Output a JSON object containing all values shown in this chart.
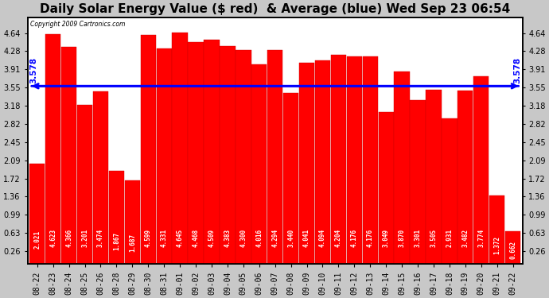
{
  "title": "Daily Solar Energy Value ($ red)  & Average (blue) Wed Sep 23 06:54",
  "copyright": "Copyright 2009 Cartronics.com",
  "average": 3.578,
  "bar_color": "#ff0000",
  "avg_line_color": "#0000ff",
  "background_color": "#ffffff",
  "plot_bg_color": "#ffffff",
  "categories": [
    "08-22",
    "08-23",
    "08-24",
    "08-25",
    "08-26",
    "08-28",
    "08-29",
    "08-30",
    "08-31",
    "09-01",
    "09-02",
    "09-03",
    "09-04",
    "09-05",
    "09-06",
    "09-07",
    "09-08",
    "09-09",
    "09-10",
    "09-11",
    "09-12",
    "09-13",
    "09-14",
    "09-15",
    "09-16",
    "09-17",
    "09-18",
    "09-19",
    "09-20",
    "09-21",
    "09-22"
  ],
  "values": [
    2.021,
    4.623,
    4.366,
    3.201,
    3.474,
    1.867,
    1.687,
    4.599,
    4.331,
    4.645,
    4.468,
    4.509,
    4.383,
    4.3,
    4.016,
    4.294,
    3.44,
    4.041,
    4.094,
    4.204,
    4.176,
    4.176,
    3.049,
    3.87,
    3.301,
    3.505,
    2.931,
    3.482,
    3.774,
    1.372,
    0.662
  ],
  "ylim": [
    0.0,
    4.96
  ],
  "yticks": [
    0.26,
    0.63,
    0.99,
    1.36,
    1.72,
    2.09,
    2.45,
    2.82,
    3.18,
    3.55,
    3.91,
    4.28,
    4.64
  ],
  "title_fontsize": 11,
  "tick_fontsize": 7,
  "bar_value_fontsize": 5.5,
  "grid_color": "#ffffff",
  "grid_style": "--",
  "border_color": "#000000",
  "outer_bg": "#c8c8c8"
}
